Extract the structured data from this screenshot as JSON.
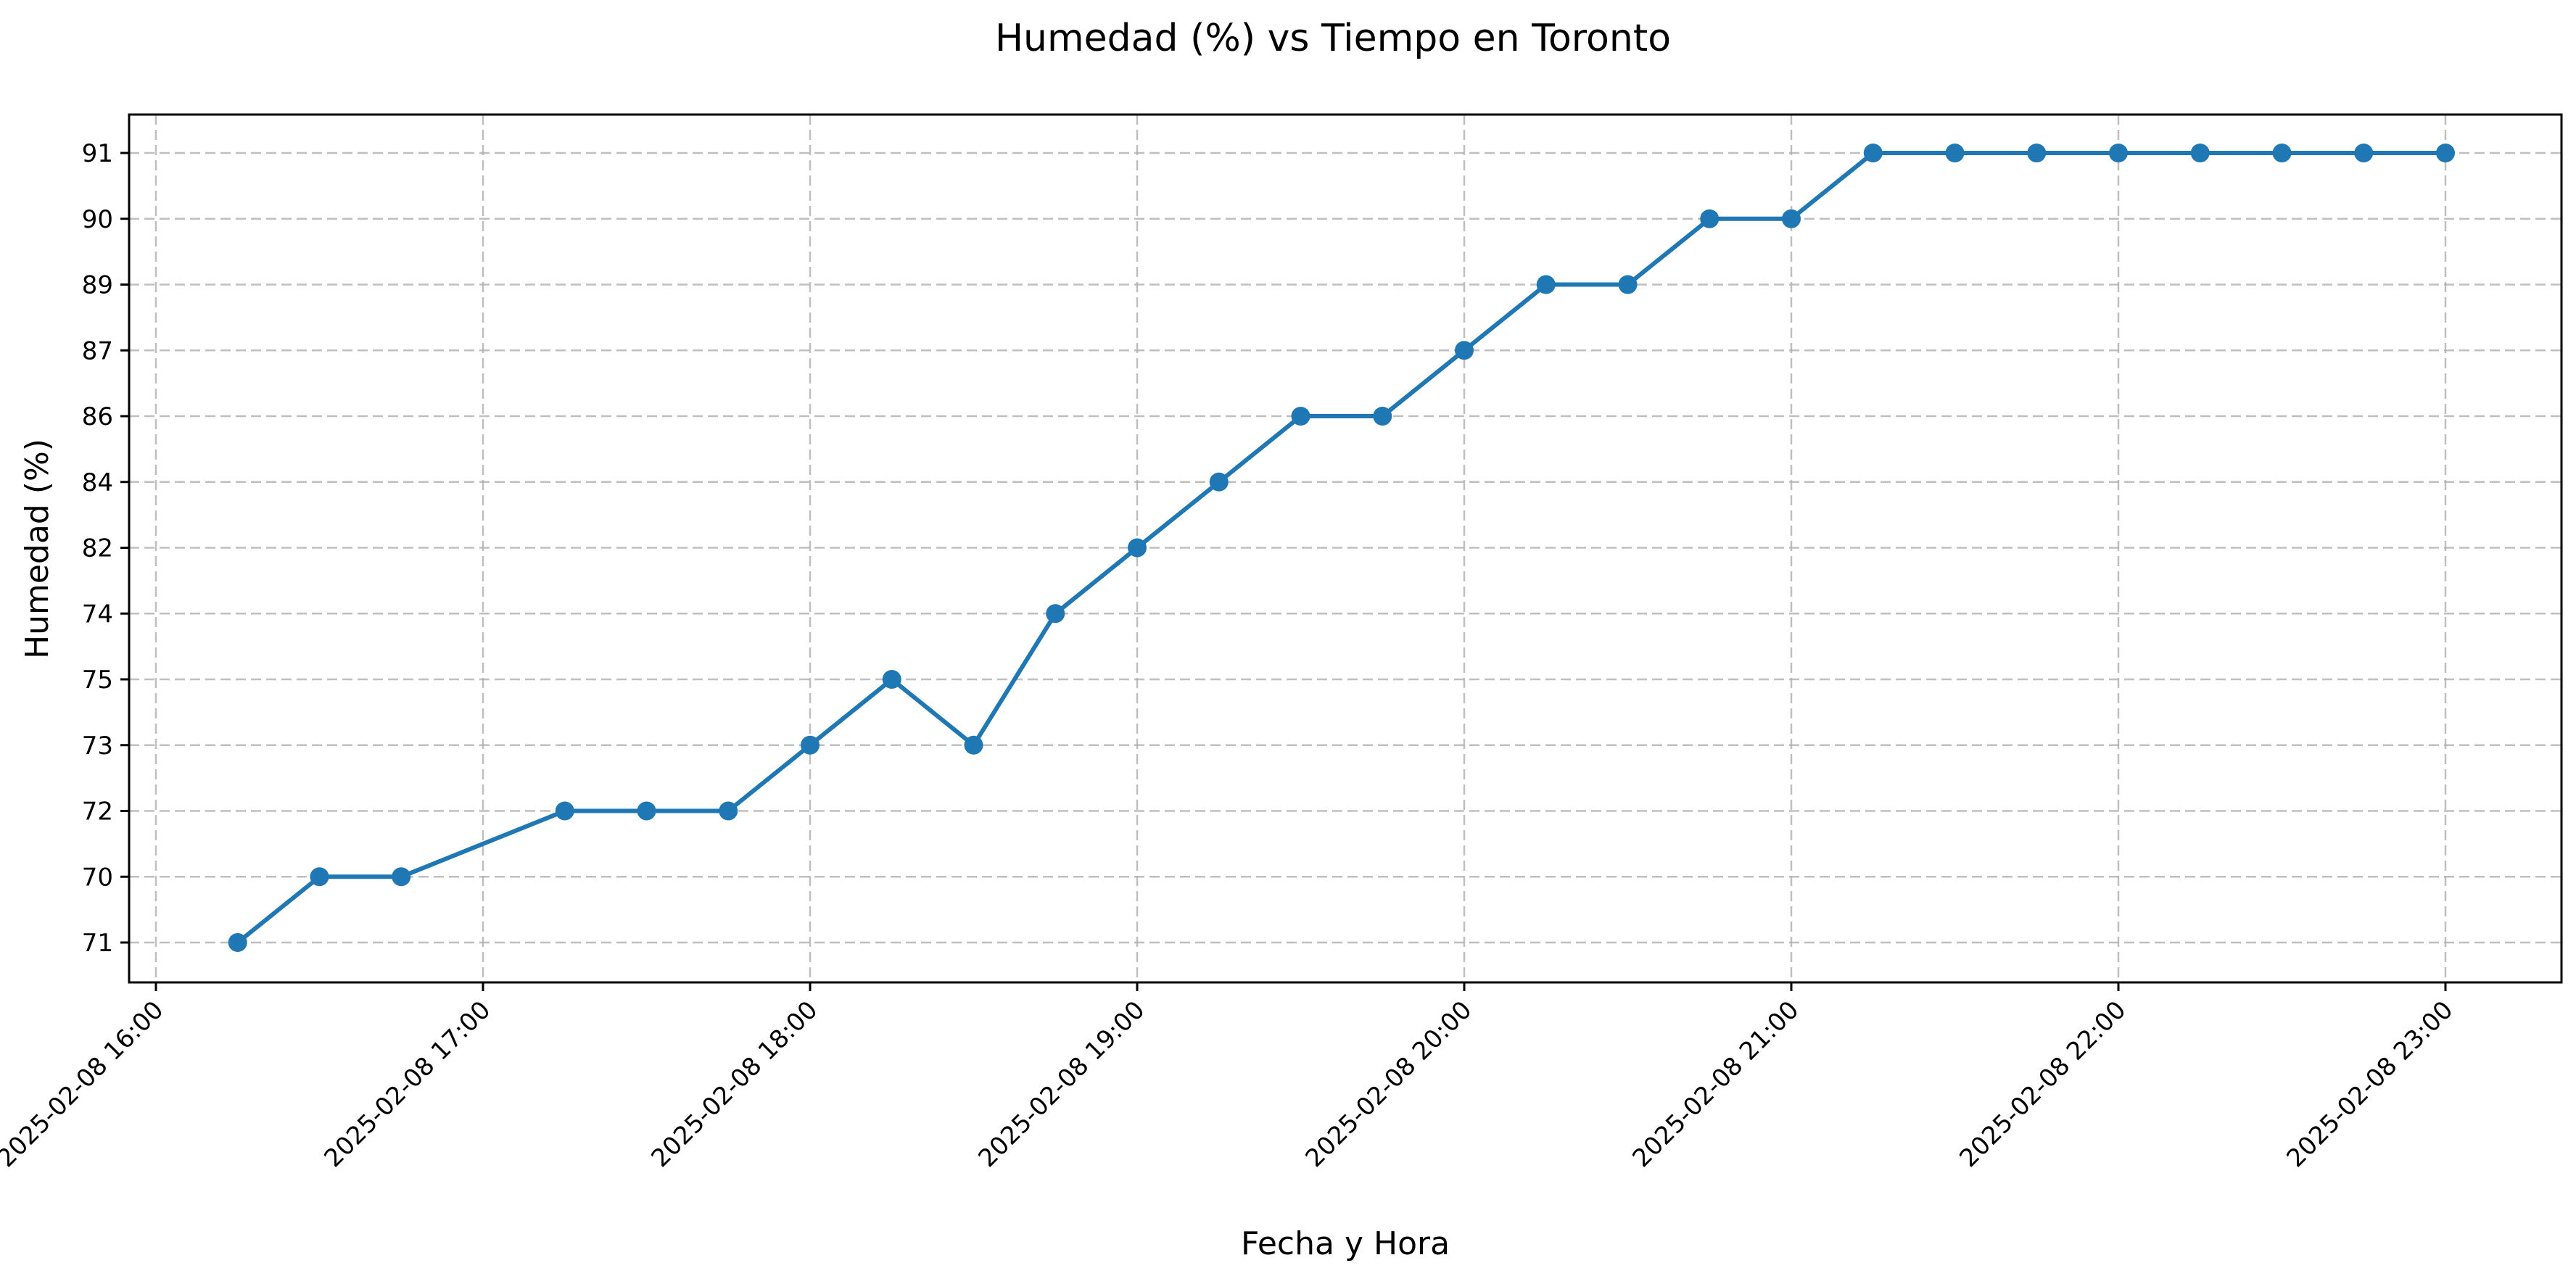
{
  "chart_data": {
    "type": "line",
    "title": "Humedad (%) vs Tiempo en Toronto",
    "xlabel": "Fecha y Hora",
    "ylabel": "Humedad (%)",
    "grid": true,
    "line_color": "#1f77b4",
    "x_tick_labels": [
      "2025-02-08 16:00",
      "2025-02-08 17:00",
      "2025-02-08 18:00",
      "2025-02-08 19:00",
      "2025-02-08 20:00",
      "2025-02-08 21:00",
      "2025-02-08 22:00",
      "2025-02-08 23:00"
    ],
    "y_categories": [
      "71",
      "70",
      "72",
      "73",
      "75",
      "74",
      "82",
      "84",
      "86",
      "87",
      "89",
      "90",
      "91"
    ],
    "series": [
      {
        "x": [
          "2025-02-08 16:15",
          "2025-02-08 16:30",
          "2025-02-08 16:45",
          "2025-02-08 17:15",
          "2025-02-08 17:30",
          "2025-02-08 17:45",
          "2025-02-08 18:00",
          "2025-02-08 18:15",
          "2025-02-08 18:30",
          "2025-02-08 18:45",
          "2025-02-08 19:00",
          "2025-02-08 19:15",
          "2025-02-08 19:30",
          "2025-02-08 19:45",
          "2025-02-08 20:00",
          "2025-02-08 20:15",
          "2025-02-08 20:30",
          "2025-02-08 20:45",
          "2025-02-08 21:00",
          "2025-02-08 21:15",
          "2025-02-08 21:30",
          "2025-02-08 21:45",
          "2025-02-08 22:00",
          "2025-02-08 22:15",
          "2025-02-08 22:30",
          "2025-02-08 22:45",
          "2025-02-08 23:00"
        ],
        "values": [
          "71",
          "70",
          "70",
          "72",
          "72",
          "72",
          "73",
          "75",
          "73",
          "74",
          "82",
          "84",
          "86",
          "86",
          "87",
          "89",
          "89",
          "90",
          "90",
          "91",
          "91",
          "91",
          "91",
          "91",
          "91",
          "91",
          "91"
        ]
      }
    ]
  }
}
